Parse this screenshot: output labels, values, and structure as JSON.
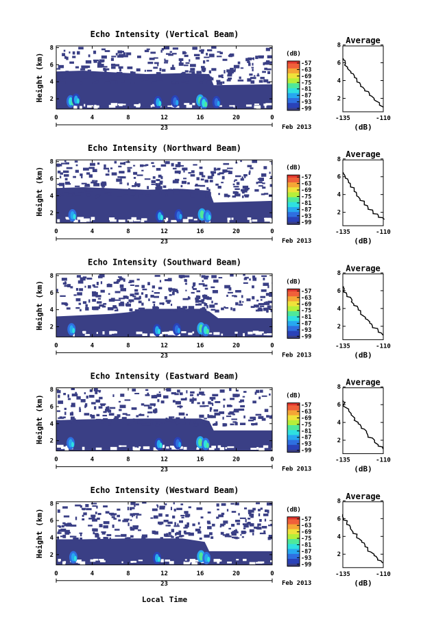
{
  "colors": {
    "echo_mass": "#3a3f85",
    "colormap": [
      "#3a3f85",
      "#2a42b8",
      "#2f6fe0",
      "#27a8f0",
      "#2fe0e0",
      "#4fe89a",
      "#b6ef3a",
      "#f0e23a",
      "#f5a636",
      "#f0603a",
      "#e0362e"
    ],
    "line": "#000000",
    "background": "#ffffff"
  },
  "common": {
    "ylabel": "Height (km)",
    "xticks": [
      "0",
      "4",
      "8",
      "12",
      "16",
      "20",
      "0"
    ],
    "day_label": "23",
    "date_label": "Feb 2013",
    "xlabel": "Local Time",
    "colorbar_unit": "(dB)",
    "colorbar_ticks": [
      "-57",
      "-63",
      "-69",
      "-75",
      "-81",
      "-87",
      "-93",
      "-99"
    ],
    "yticks": [
      "2",
      "4",
      "6",
      "8"
    ],
    "avg_title": "Average",
    "avg_xticks": [
      "-135",
      "-110"
    ],
    "avg_xlabel": "(dB)"
  },
  "chart_data": [
    {
      "type": "heatmap",
      "title": "Echo Intensity (Vertical Beam)",
      "ylabel": "Height (km)",
      "xlim": [
        0,
        24
      ],
      "ylim": [
        0.8,
        8.2
      ],
      "colorbar_range_dB": [
        -99,
        -57
      ],
      "echo_top_km": [
        [
          0,
          5.2
        ],
        [
          3,
          5.3
        ],
        [
          10,
          4.9
        ],
        [
          14,
          5.0
        ],
        [
          17,
          4.9
        ],
        [
          17.5,
          3.6
        ],
        [
          24,
          3.7
        ]
      ],
      "layers": [
        {
          "t0": 0,
          "t1": 24,
          "h0": 0.9,
          "h1": 3.6,
          "dB": -96
        },
        {
          "t0": 0,
          "t1": 17,
          "h0": 1.0,
          "h1": 5.0,
          "dB": -97
        }
      ],
      "cores": [
        {
          "t": 1.6,
          "h": 1.7,
          "dB": -84
        },
        {
          "t": 2.2,
          "h": 1.9,
          "dB": -87
        },
        {
          "t": 11.3,
          "h": 1.6,
          "dB": -88
        },
        {
          "t": 13.2,
          "h": 1.7,
          "dB": -90
        },
        {
          "t": 16.0,
          "h": 1.8,
          "dB": -80
        },
        {
          "t": 16.4,
          "h": 1.5,
          "dB": -84
        },
        {
          "t": 17.8,
          "h": 1.6,
          "dB": -90
        }
      ],
      "average_profile": {
        "x": [
          -110,
          -113,
          -116,
          -119,
          -121,
          -124,
          -126,
          -128,
          -130,
          -132,
          -134,
          -135
        ],
        "y": [
          1.0,
          1.5,
          2.0,
          2.5,
          3.0,
          3.5,
          4.0,
          4.5,
          5.0,
          5.5,
          6.0,
          6.5
        ],
        "xlim": [
          -135,
          -110
        ],
        "ylim": [
          0.8,
          8.2
        ]
      }
    },
    {
      "type": "heatmap",
      "title": "Echo Intensity (Northward Beam)",
      "ylabel": "Height (km)",
      "xlim": [
        0,
        24
      ],
      "ylim": [
        0.8,
        8.2
      ],
      "colorbar_range_dB": [
        -99,
        -57
      ],
      "echo_top_km": [
        [
          0,
          4.9
        ],
        [
          3,
          5.0
        ],
        [
          10,
          4.7
        ],
        [
          14,
          4.8
        ],
        [
          17,
          4.6
        ],
        [
          17.5,
          3.2
        ],
        [
          24,
          3.4
        ]
      ],
      "layers": [
        {
          "t0": 0,
          "t1": 24,
          "h0": 1.0,
          "h1": 3.3,
          "dB": -96
        },
        {
          "t0": 0,
          "t1": 17,
          "h0": 1.0,
          "h1": 4.8,
          "dB": -97
        }
      ],
      "cores": [
        {
          "t": 1.8,
          "h": 1.7,
          "dB": -85
        },
        {
          "t": 11.5,
          "h": 1.6,
          "dB": -88
        },
        {
          "t": 13.6,
          "h": 1.7,
          "dB": -89
        },
        {
          "t": 16.2,
          "h": 1.8,
          "dB": -80
        },
        {
          "t": 16.8,
          "h": 1.6,
          "dB": -85
        }
      ],
      "average_profile": {
        "x": [
          -110,
          -113,
          -116,
          -119,
          -121,
          -124,
          -126,
          -128,
          -130,
          -132,
          -134,
          -135
        ],
        "y": [
          1.2,
          1.6,
          2.0,
          2.5,
          3.0,
          3.5,
          4.0,
          4.5,
          5.0,
          5.5,
          6.0,
          6.5
        ],
        "xlim": [
          -135,
          -110
        ],
        "ylim": [
          0.8,
          8.2
        ]
      }
    },
    {
      "type": "heatmap",
      "title": "Echo Intensity (Southward Beam)",
      "ylabel": "Height (km)",
      "xlim": [
        0,
        24
      ],
      "ylim": [
        0.8,
        8.2
      ],
      "colorbar_range_dB": [
        -99,
        -57
      ],
      "echo_top_km": [
        [
          0,
          3.2
        ],
        [
          6,
          3.5
        ],
        [
          8,
          3.7
        ],
        [
          10,
          4.1
        ],
        [
          16,
          4.1
        ],
        [
          17,
          3.8
        ],
        [
          18,
          3.0
        ],
        [
          24,
          3.0
        ]
      ],
      "layers": [
        {
          "t0": 0,
          "t1": 24,
          "h0": 1.0,
          "h1": 3.0,
          "dB": -96
        },
        {
          "t0": 8,
          "t1": 17,
          "h0": 1.0,
          "h1": 4.1,
          "dB": -97
        }
      ],
      "cores": [
        {
          "t": 1.7,
          "h": 1.7,
          "dB": -85
        },
        {
          "t": 11.2,
          "h": 1.6,
          "dB": -88
        },
        {
          "t": 13.4,
          "h": 1.7,
          "dB": -89
        },
        {
          "t": 16.1,
          "h": 1.8,
          "dB": -79
        },
        {
          "t": 16.6,
          "h": 1.6,
          "dB": -84
        }
      ],
      "average_profile": {
        "x": [
          -110,
          -113,
          -116,
          -119,
          -121,
          -124,
          -126,
          -128,
          -130,
          -132,
          -134,
          -135
        ],
        "y": [
          1.0,
          1.5,
          2.0,
          2.5,
          3.0,
          3.5,
          4.0,
          4.5,
          5.0,
          5.5,
          6.0,
          6.5
        ],
        "xlim": [
          -135,
          -110
        ],
        "ylim": [
          0.8,
          8.2
        ]
      }
    },
    {
      "type": "heatmap",
      "title": "Echo Intensity (Eastward Beam)",
      "ylabel": "Height (km)",
      "xlim": [
        0,
        24
      ],
      "ylim": [
        0.8,
        8.2
      ],
      "colorbar_range_dB": [
        -99,
        -57
      ],
      "echo_top_km": [
        [
          0,
          4.4
        ],
        [
          3,
          4.5
        ],
        [
          10,
          4.6
        ],
        [
          16,
          4.6
        ],
        [
          17,
          4.3
        ],
        [
          17.5,
          3.2
        ],
        [
          24,
          3.2
        ]
      ],
      "layers": [
        {
          "t0": 0,
          "t1": 24,
          "h0": 1.0,
          "h1": 3.2,
          "dB": -96
        },
        {
          "t0": 0,
          "t1": 17,
          "h0": 1.0,
          "h1": 4.5,
          "dB": -97
        }
      ],
      "cores": [
        {
          "t": 1.6,
          "h": 1.7,
          "dB": -85
        },
        {
          "t": 11.4,
          "h": 1.6,
          "dB": -88
        },
        {
          "t": 13.5,
          "h": 1.7,
          "dB": -89
        },
        {
          "t": 16.0,
          "h": 1.8,
          "dB": -79
        },
        {
          "t": 16.6,
          "h": 1.6,
          "dB": -84
        }
      ],
      "average_profile": {
        "x": [
          -110,
          -113,
          -116,
          -119,
          -121,
          -124,
          -126,
          -128,
          -130,
          -132,
          -134,
          -135
        ],
        "y": [
          1.0,
          1.5,
          2.0,
          2.5,
          3.0,
          3.5,
          4.0,
          4.5,
          5.0,
          5.5,
          6.0,
          6.5
        ],
        "xlim": [
          -135,
          -110
        ],
        "ylim": [
          0.8,
          8.2
        ]
      }
    },
    {
      "type": "heatmap",
      "title": "Echo Intensity (Westward Beam)",
      "ylabel": "Height (km)",
      "xlim": [
        0,
        24
      ],
      "ylim": [
        0.8,
        8.2
      ],
      "colorbar_range_dB": [
        -99,
        -57
      ],
      "echo_top_km": [
        [
          0,
          3.8
        ],
        [
          3,
          3.8
        ],
        [
          8,
          3.9
        ],
        [
          14,
          3.9
        ],
        [
          16.5,
          3.5
        ],
        [
          17,
          2.4
        ],
        [
          24,
          2.4
        ]
      ],
      "layers": [
        {
          "t0": 0,
          "t1": 24,
          "h0": 1.0,
          "h1": 2.4,
          "dB": -96
        },
        {
          "t0": 0,
          "t1": 17,
          "h0": 1.0,
          "h1": 3.8,
          "dB": -97
        }
      ],
      "cores": [
        {
          "t": 1.9,
          "h": 1.7,
          "dB": -85
        },
        {
          "t": 11.2,
          "h": 1.6,
          "dB": -88
        },
        {
          "t": 16.1,
          "h": 1.8,
          "dB": -80
        },
        {
          "t": 16.7,
          "h": 1.6,
          "dB": -85
        }
      ],
      "average_profile": {
        "x": [
          -110,
          -113,
          -116,
          -119,
          -121,
          -124,
          -126,
          -128,
          -130,
          -132,
          -134,
          -135
        ],
        "y": [
          1.0,
          1.5,
          2.0,
          2.5,
          3.0,
          3.5,
          4.0,
          4.5,
          5.0,
          5.5,
          6.0,
          6.5
        ],
        "xlim": [
          -135,
          -110
        ],
        "ylim": [
          0.8,
          8.2
        ]
      }
    }
  ]
}
